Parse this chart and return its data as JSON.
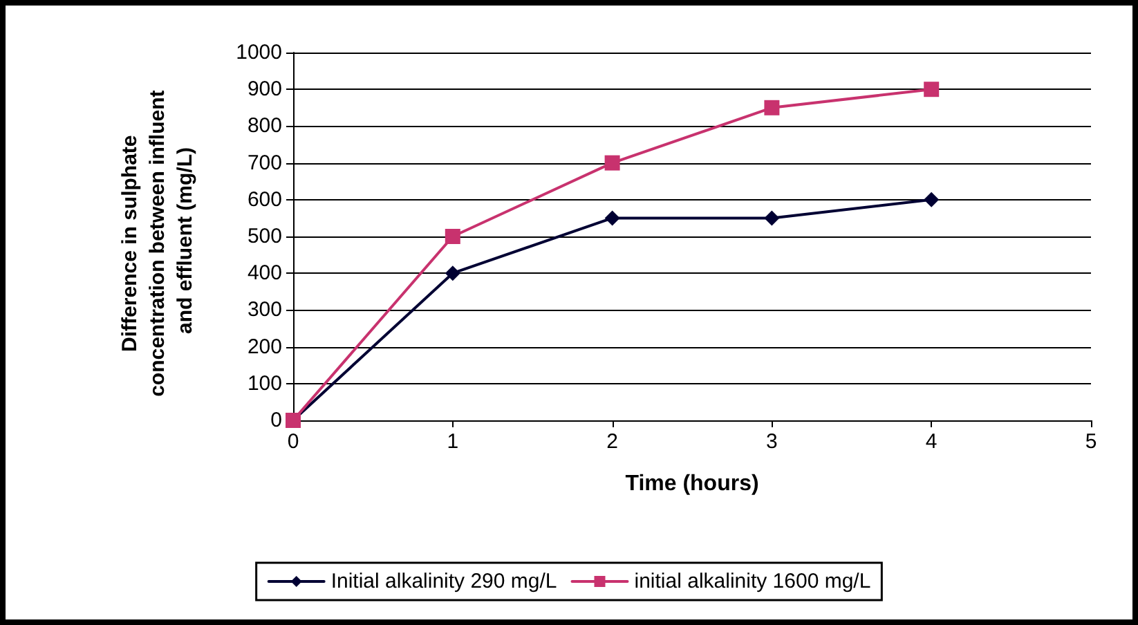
{
  "chart_data": {
    "type": "line",
    "xlabel": "Time (hours)",
    "ylabel": "Difference in sulphate concentration between influent and effluent (mg/L)",
    "x": [
      0,
      1,
      2,
      3,
      4
    ],
    "series": [
      {
        "name": "Initial alkalinity 290 mg/L",
        "color": "#000033",
        "values": [
          0,
          400,
          550,
          550,
          600
        ],
        "marker": "diamond"
      },
      {
        "name": "initial alkalinity 1600 mg/L",
        "color": "#c8326e",
        "values": [
          0,
          500,
          700,
          850,
          900
        ],
        "marker": "square"
      }
    ],
    "xlim": [
      0,
      5
    ],
    "xticks": [
      0,
      1,
      2,
      3,
      4,
      5
    ],
    "ylim": [
      0,
      1000
    ],
    "yticks": [
      0,
      100,
      200,
      300,
      400,
      500,
      600,
      700,
      800,
      900,
      1000
    ],
    "grid": "y",
    "legend": "bottom",
    "line_style": "solid"
  }
}
